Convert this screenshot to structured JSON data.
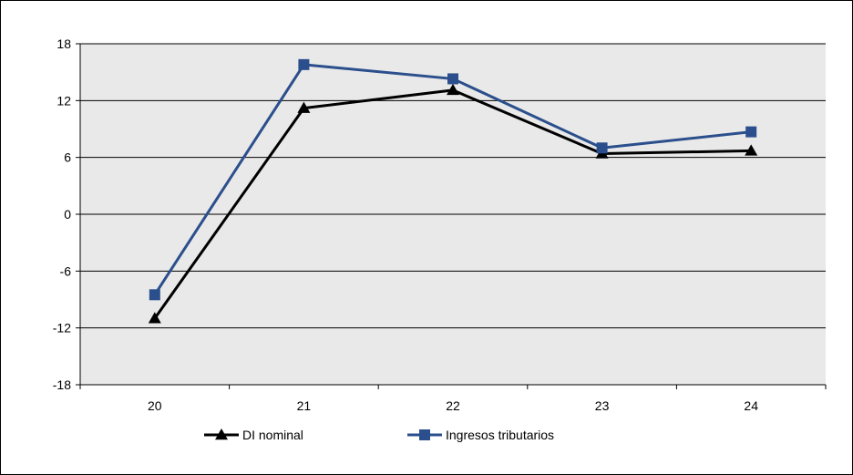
{
  "chart_data": {
    "type": "line",
    "title": "",
    "xlabel": "",
    "ylabel": "",
    "categories": [
      "20",
      "21",
      "22",
      "23",
      "24"
    ],
    "ylim": [
      -18,
      18
    ],
    "yticks": [
      -18,
      -12,
      -6,
      0,
      6,
      12,
      18
    ],
    "grid": true,
    "legend": "bottom",
    "series": [
      {
        "name": "DI nominal",
        "values": [
          -11.0,
          11.2,
          13.1,
          6.4,
          6.7
        ],
        "color": "#000000",
        "marker": "triangle"
      },
      {
        "name": "Ingresos tributarios",
        "values": [
          -8.5,
          15.8,
          14.3,
          7.0,
          8.7
        ],
        "color": "#2b4f8c",
        "marker": "square"
      }
    ]
  }
}
